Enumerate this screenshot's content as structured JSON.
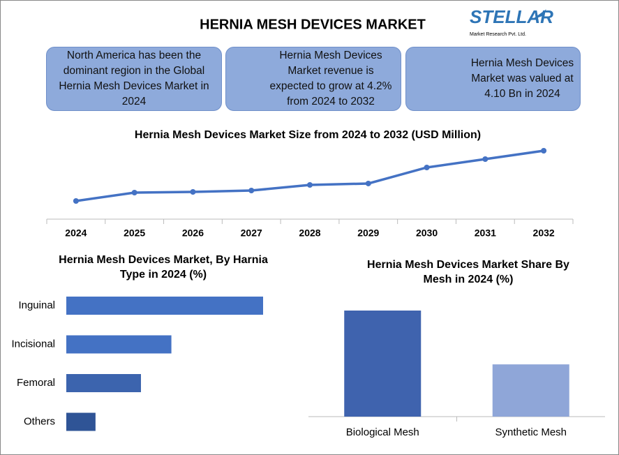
{
  "title": "HERNIA MESH DEVICES MARKET",
  "logo": {
    "name": "STELLAR",
    "tagline": "Market Research Pvt. Ltd."
  },
  "info_boxes": [
    "North America has been the dominant region in the Global Hernia Mesh Devices Market in 2024",
    "Hernia Mesh Devices Market revenue is expected to grow at 4.2% from 2024 to 2032",
    "Hernia Mesh Devices Market was valued at 4.10 Bn in 2024"
  ],
  "chart_data": [
    {
      "type": "line",
      "title": "Hernia Mesh Devices Market Size from 2024 to 2032 (USD Million)",
      "categories": [
        "2024",
        "2025",
        "2026",
        "2027",
        "2028",
        "2029",
        "2030",
        "2031",
        "2032"
      ],
      "values": [
        4100,
        4367,
        4389,
        4433,
        4611,
        4656,
        5167,
        5433,
        5700
      ],
      "color": "#4472c4"
    },
    {
      "type": "hbar",
      "title": "Hernia Mesh Devices Market, By Harnia Type in 2024 (%)",
      "categories": [
        "Inguinal",
        "Incisional",
        "Femoral",
        "Others"
      ],
      "values": [
        48.5,
        25.9,
        18.4,
        7.2
      ],
      "colors": [
        "#4472c4",
        "#4472c4",
        "#3c64ae",
        "#2f5496"
      ]
    },
    {
      "type": "bar",
      "title": "Hernia Mesh Devices Market Share By Mesh in 2024 (%)",
      "categories": [
        "Biological Mesh",
        "Synthetic Mesh"
      ],
      "values": [
        67,
        33
      ],
      "colors": [
        "#3f63ae",
        "#8fa6d8"
      ]
    }
  ]
}
